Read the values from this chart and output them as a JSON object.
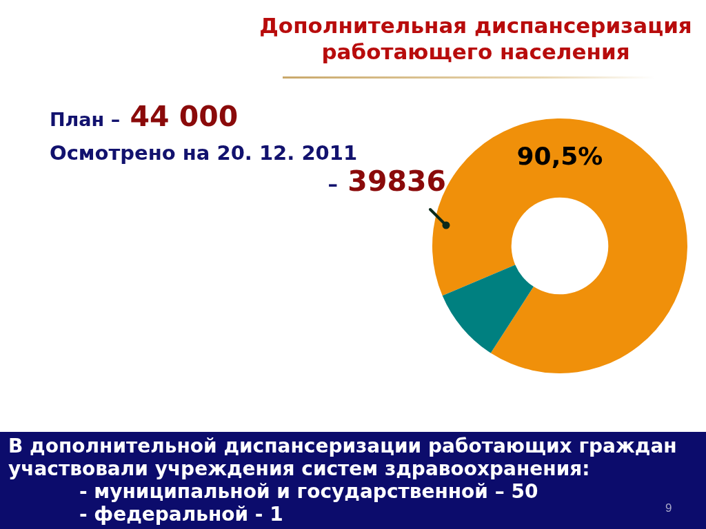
{
  "chart_data": {
    "type": "donut",
    "title": "Дополнительная диспансеризация работающего населения",
    "categories": [
      null,
      null
    ],
    "values": [
      90.5,
      9.5
    ],
    "colors": [
      "#f0900a",
      "#008080"
    ],
    "value_labels": [
      "90,5%",
      null
    ],
    "annotations": [
      "План – 44 000",
      "Осмотрено на 20. 12. 2011 – 39836",
      "В дополнительной диспансеризации работающих граждан участвовали учреждения систем здравоохранения:",
      "- муниципальной и государственной – 50",
      "- федеральной - 1",
      "9"
    ]
  }
}
